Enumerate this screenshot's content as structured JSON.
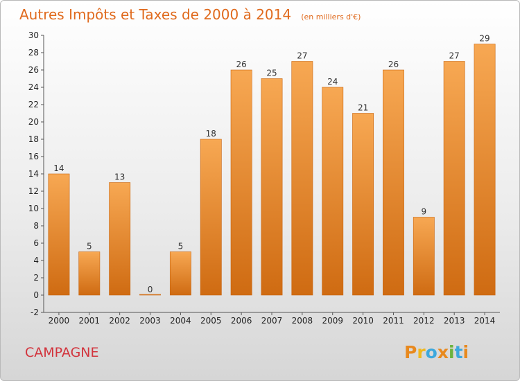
{
  "chart_data": {
    "type": "bar",
    "title": "Autres Impôts et Taxes de 2000 à 2014",
    "title_unit": "(en milliers d'€)",
    "categories": [
      "2000",
      "2001",
      "2002",
      "2003",
      "2004",
      "2005",
      "2006",
      "2007",
      "2008",
      "2009",
      "2010",
      "2011",
      "2012",
      "2013",
      "2014"
    ],
    "values": [
      14,
      5,
      13,
      0,
      5,
      18,
      26,
      25,
      27,
      24,
      21,
      26,
      9,
      27,
      29
    ],
    "ylim": [
      -2,
      30
    ],
    "yticks": [
      -2,
      0,
      2,
      4,
      6,
      8,
      10,
      12,
      14,
      16,
      18,
      20,
      22,
      24,
      26,
      28,
      30
    ],
    "grid": false,
    "bar_color_top": "#f7a853",
    "bar_color_bottom": "#cf6b12"
  },
  "footer": {
    "commune": "CAMPAGNE",
    "brand_letters": [
      "P",
      "r",
      "o",
      "x",
      "i",
      "t",
      "i"
    ],
    "brand_colors": [
      "#e8891e",
      "#f0b81e",
      "#3da8dd",
      "#e8891e",
      "#6cb33e",
      "#3da8dd",
      "#e8891e"
    ]
  }
}
